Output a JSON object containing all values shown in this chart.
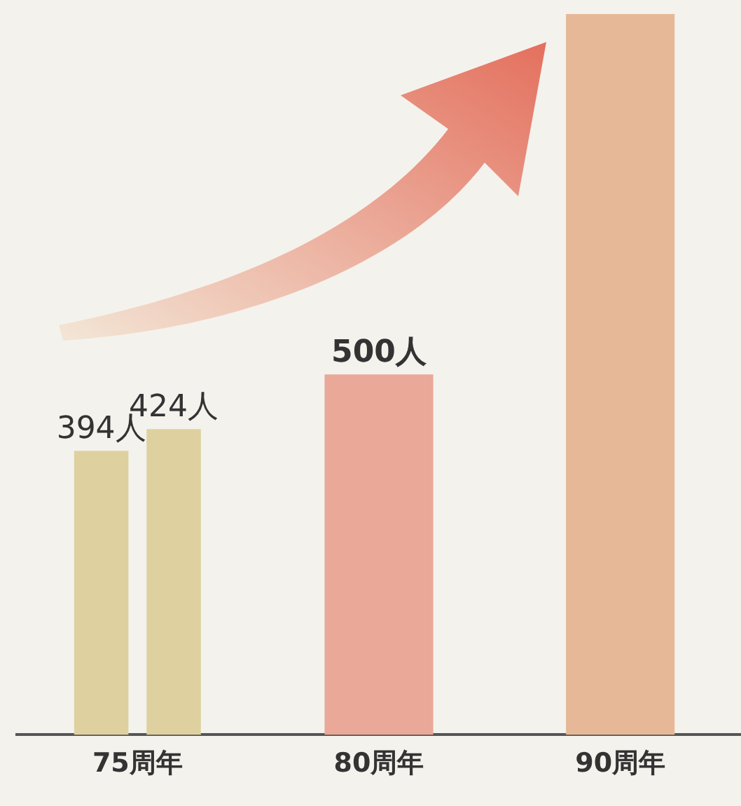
{
  "chart_data": {
    "type": "bar",
    "categories": [
      "75周年",
      "80周年",
      "90周年"
    ],
    "series": [
      {
        "colors": [
          "#ded19f",
          "#eaa898",
          "#e6b898"
        ],
        "values": [
          394,
          500,
          1000
        ],
        "value_labels": [
          "394人",
          "500人",
          null
        ]
      },
      {
        "color": "#ded19f",
        "values": [
          424,
          null,
          null
        ],
        "value_labels": [
          "424人",
          null,
          null
        ]
      }
    ],
    "legend": false,
    "grid": false
  }
}
